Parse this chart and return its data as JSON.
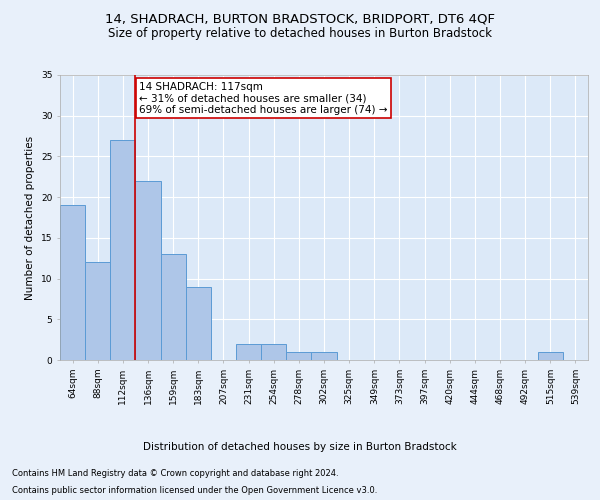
{
  "title": "14, SHADRACH, BURTON BRADSTOCK, BRIDPORT, DT6 4QF",
  "subtitle": "Size of property relative to detached houses in Burton Bradstock",
  "xlabel": "Distribution of detached houses by size in Burton Bradstock",
  "ylabel": "Number of detached properties",
  "footer_line1": "Contains HM Land Registry data © Crown copyright and database right 2024.",
  "footer_line2": "Contains public sector information licensed under the Open Government Licence v3.0.",
  "categories": [
    "64sqm",
    "88sqm",
    "112sqm",
    "136sqm",
    "159sqm",
    "183sqm",
    "207sqm",
    "231sqm",
    "254sqm",
    "278sqm",
    "302sqm",
    "325sqm",
    "349sqm",
    "373sqm",
    "397sqm",
    "420sqm",
    "444sqm",
    "468sqm",
    "492sqm",
    "515sqm",
    "539sqm"
  ],
  "values": [
    19,
    12,
    27,
    22,
    13,
    9,
    0,
    2,
    2,
    1,
    1,
    0,
    0,
    0,
    0,
    0,
    0,
    0,
    0,
    1,
    0
  ],
  "bar_color": "#aec6e8",
  "bar_edge_color": "#5b9bd5",
  "vline_color": "#cc0000",
  "annotation_text": "14 SHADRACH: 117sqm\n← 31% of detached houses are smaller (34)\n69% of semi-detached houses are larger (74) →",
  "annotation_box_color": "#cc0000",
  "ylim": [
    0,
    35
  ],
  "yticks": [
    0,
    5,
    10,
    15,
    20,
    25,
    30,
    35
  ],
  "background_color": "#dce9f8",
  "fig_background_color": "#e8f0fa",
  "grid_color": "#ffffff",
  "title_fontsize": 9.5,
  "subtitle_fontsize": 8.5,
  "axis_label_fontsize": 7.5,
  "tick_fontsize": 6.5,
  "annotation_fontsize": 7.5,
  "footer_fontsize": 6.0,
  "vline_pos": 2.5
}
